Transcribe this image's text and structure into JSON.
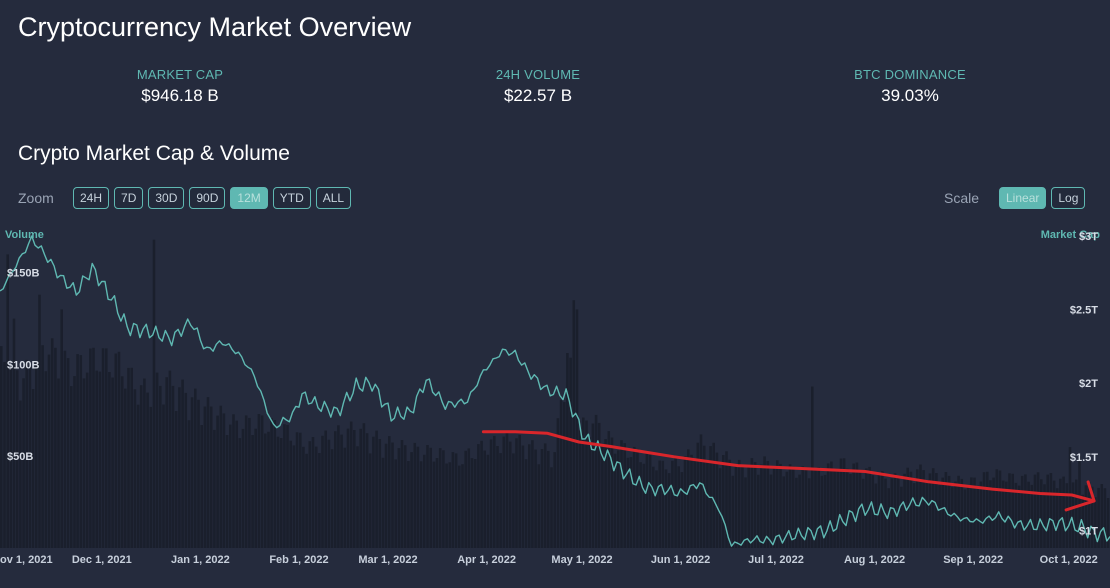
{
  "header": {
    "title": "Cryptocurrency Market Overview"
  },
  "stats": [
    {
      "label": "MARKET CAP",
      "value": "$946.18 B"
    },
    {
      "label": "24H VOLUME",
      "value": "$22.57 B"
    },
    {
      "label": "BTC DOMINANCE",
      "value": "39.03%"
    }
  ],
  "chart_section": {
    "title": "Crypto Market Cap & Volume",
    "zoom_label": "Zoom",
    "zoom_options": [
      "24H",
      "7D",
      "30D",
      "90D",
      "12M",
      "YTD",
      "ALL"
    ],
    "zoom_selected": "12M",
    "scale_label": "Scale",
    "scale_options": [
      "Linear",
      "Log"
    ],
    "scale_selected": "Linear"
  },
  "colors": {
    "background": "#252b3d",
    "accent": "#5fb8b2",
    "volume_bars": "#1a1f2c",
    "annotation": "#d9262b"
  },
  "chart_data": {
    "type": "area",
    "left_axis": {
      "title": "Volume",
      "ticks": [
        "$50B",
        "$100B",
        "$150B"
      ],
      "tick_values": [
        50,
        100,
        150
      ],
      "range": [
        0,
        170
      ]
    },
    "right_axis": {
      "title": "Market Cap",
      "ticks": [
        "$1T",
        "$1.5T",
        "$2T",
        "$2.5T",
        "$3T"
      ],
      "tick_values": [
        1,
        1.5,
        2,
        2.5,
        3
      ],
      "range": [
        0.88,
        3.0
      ]
    },
    "x_ticks": [
      "ov 1, 2021",
      "Dec 1, 2021",
      "Jan 1, 2022",
      "Feb 1, 2022",
      "Mar 1, 2022",
      "Apr 1, 2022",
      "May 1, 2022",
      "Jun 1, 2022",
      "Jul 1, 2022",
      "Aug 1, 2022",
      "Sep 1, 2022",
      "Oct 1, 2022"
    ],
    "x_tick_days": [
      0,
      30,
      61,
      92,
      120,
      151,
      181,
      212,
      242,
      273,
      304,
      334
    ],
    "x_range_days": [
      -2,
      347
    ],
    "market_cap": {
      "days": [
        -2,
        3,
        8,
        12,
        17,
        22,
        27,
        33,
        38,
        45,
        52,
        58,
        63,
        68,
        73,
        78,
        84,
        90,
        93,
        98,
        104,
        110,
        115,
        121,
        127,
        132,
        138,
        145,
        150,
        156,
        160,
        164,
        170,
        176,
        182,
        188,
        194,
        200,
        203,
        207,
        212,
        218,
        224,
        228,
        235,
        240,
        246,
        252,
        258,
        264,
        270,
        278,
        284,
        290,
        296,
        300,
        306,
        312,
        318,
        324,
        330,
        334,
        338,
        342,
        347
      ],
      "values": [
        2.62,
        2.8,
        2.98,
        2.88,
        2.72,
        2.62,
        2.78,
        2.58,
        2.38,
        2.35,
        2.3,
        2.42,
        2.22,
        2.28,
        2.2,
        2.05,
        1.7,
        1.78,
        1.92,
        1.85,
        1.8,
        1.98,
        2.0,
        1.78,
        1.8,
        2.02,
        1.85,
        1.88,
        2.08,
        2.22,
        2.2,
        2.08,
        1.95,
        1.92,
        1.62,
        1.52,
        1.4,
        1.3,
        1.28,
        1.28,
        1.25,
        1.32,
        1.15,
        0.9,
        0.94,
        0.93,
        0.96,
        0.98,
        1.0,
        1.08,
        1.15,
        1.12,
        1.18,
        1.2,
        1.12,
        1.08,
        1.06,
        1.1,
        1.04,
        1.03,
        1.05,
        1.04,
        1.02,
        0.98,
        0.97
      ]
    },
    "volume": {
      "days": [
        -2,
        5,
        12,
        20,
        28,
        35,
        42,
        50,
        58,
        65,
        72,
        80,
        88,
        95,
        102,
        110,
        118,
        126,
        134,
        142,
        150,
        158,
        166,
        172,
        176,
        180,
        184,
        190,
        198,
        206,
        212,
        218,
        224,
        230,
        238,
        246,
        254,
        262,
        270,
        278,
        286,
        294,
        302,
        310,
        318,
        326,
        334,
        340,
        347
      ],
      "values": [
        110,
        100,
        118,
        105,
        112,
        108,
        92,
        98,
        88,
        80,
        72,
        74,
        68,
        60,
        66,
        70,
        62,
        58,
        56,
        52,
        60,
        64,
        58,
        56,
        115,
        70,
        75,
        62,
        55,
        48,
        50,
        62,
        55,
        48,
        50,
        46,
        44,
        50,
        45,
        40,
        46,
        42,
        38,
        44,
        40,
        42,
        38,
        36,
        34
      ]
    },
    "volume_spikes": [
      {
        "day": 0,
        "value": 160
      },
      {
        "day": 2,
        "value": 125
      },
      {
        "day": 10,
        "value": 138
      },
      {
        "day": 17,
        "value": 130
      },
      {
        "day": 46,
        "value": 168
      },
      {
        "day": 178,
        "value": 135
      },
      {
        "day": 179,
        "value": 130
      },
      {
        "day": 253,
        "value": 88
      },
      {
        "day": 334,
        "value": 55
      },
      {
        "day": 337,
        "value": 50
      }
    ],
    "annotation_arrow": {
      "days": [
        150,
        160,
        170,
        180,
        190,
        210,
        230,
        250,
        270,
        290,
        310,
        325,
        335,
        342
      ],
      "values": [
        1.67,
        1.67,
        1.66,
        1.6,
        1.57,
        1.5,
        1.44,
        1.42,
        1.4,
        1.33,
        1.28,
        1.25,
        1.24,
        1.2
      ]
    },
    "grid": false,
    "legend": "none"
  }
}
